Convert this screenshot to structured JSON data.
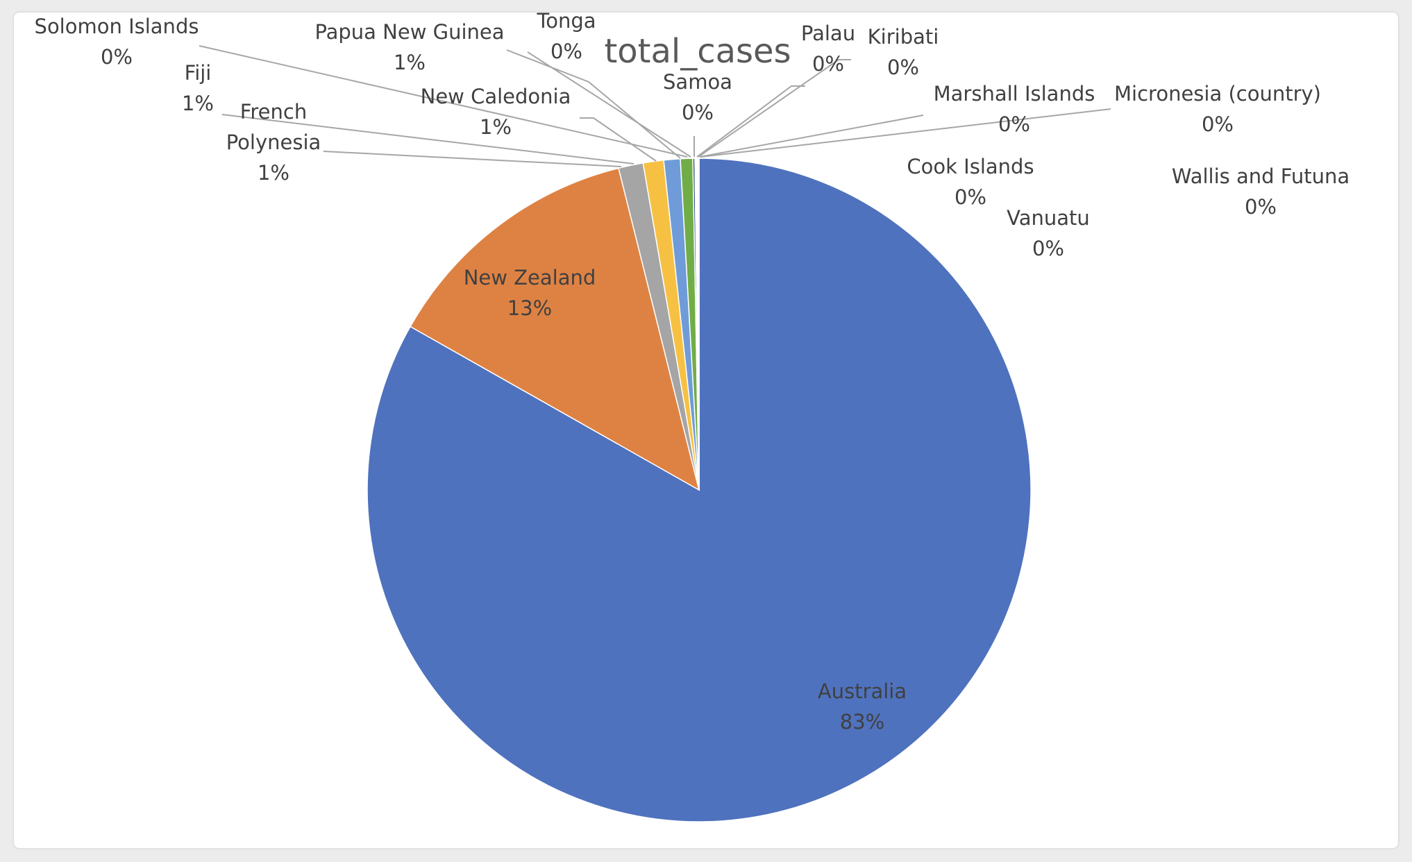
{
  "chart_data": {
    "type": "pie",
    "title": "total_cases",
    "slices": [
      {
        "name": "Australia",
        "pct_label": "83%",
        "value": 83.2,
        "color": "#4f72be"
      },
      {
        "name": "New Zealand",
        "pct_label": "13%",
        "value": 12.9,
        "color": "#de8244"
      },
      {
        "name": "French Polynesia",
        "name_lines": [
          "French",
          "Polynesia"
        ],
        "pct_label": "1%",
        "value": 1.2,
        "color": "#a5a5a5"
      },
      {
        "name": "Fiji",
        "pct_label": "1%",
        "value": 1.0,
        "color": "#f6c142"
      },
      {
        "name": "New Caledonia",
        "pct_label": "1%",
        "value": 0.8,
        "color": "#6f9cd8"
      },
      {
        "name": "Papua New Guinea",
        "pct_label": "1%",
        "value": 0.6,
        "color": "#71ad47"
      },
      {
        "name": "Solomon Islands",
        "pct_label": "0%",
        "value": 0.1,
        "color": "#2c4e8c"
      },
      {
        "name": "Tonga",
        "pct_label": "0%",
        "value": 0.05,
        "color": "#9d4f19"
      },
      {
        "name": "Samoa",
        "pct_label": "0%",
        "value": 0.05,
        "color": "#636363"
      },
      {
        "name": "Palau",
        "pct_label": "0%",
        "value": 0.03,
        "color": "#997300"
      },
      {
        "name": "Kiribati",
        "pct_label": "0%",
        "value": 0.02,
        "color": "#264478"
      },
      {
        "name": "Marshall Islands",
        "pct_label": "0%",
        "value": 0.01,
        "color": "#43682b"
      },
      {
        "name": "Micronesia (country)",
        "pct_label": "0%",
        "value": 0.01,
        "color": "#698ed0"
      },
      {
        "name": "Cook Islands",
        "pct_label": "0%",
        "value": 0.01,
        "color": "#f1975a"
      },
      {
        "name": "Vanuatu",
        "pct_label": "0%",
        "value": 0.01,
        "color": "#b7b7b7"
      },
      {
        "name": "Wallis and Futuna",
        "pct_label": "0%",
        "value": 0.01,
        "color": "#ffcd33"
      }
    ],
    "legend": "none",
    "data_labels": "category name and percentage"
  }
}
